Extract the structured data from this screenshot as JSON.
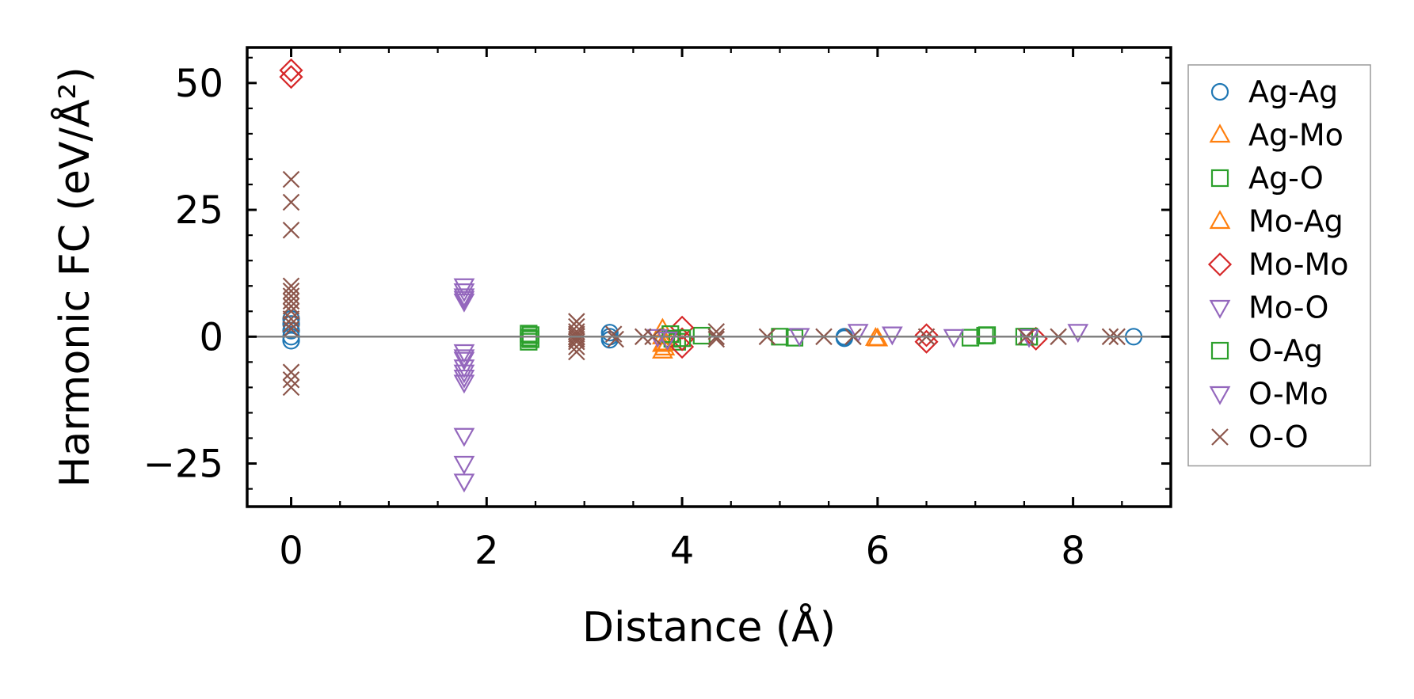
{
  "chart_data": {
    "type": "scatter",
    "xlabel": "Distance (Å)",
    "ylabel": "Harmonic FC (eV/Å²)",
    "xlim": [
      -0.45,
      9.0
    ],
    "ylim": [
      -33.5,
      57
    ],
    "x_ticks": [
      0,
      2,
      4,
      6,
      8
    ],
    "x_tick_labels": [
      "0",
      "2",
      "4",
      "6",
      "8"
    ],
    "y_ticks": [
      -25,
      0,
      25,
      50
    ],
    "y_tick_labels": [
      "−25",
      "0",
      "25",
      "50"
    ],
    "zero_line": true,
    "grid": false,
    "legend_position": "right",
    "series": [
      {
        "name": "Ag-Ag",
        "marker": "circle",
        "color": "#1f77b4",
        "x": [
          0,
          0,
          0,
          0,
          0,
          3.26,
          3.26,
          3.26,
          5.66,
          5.66,
          8.62
        ],
        "y": [
          3.5,
          2.5,
          1.2,
          0,
          -0.8,
          0.8,
          0,
          -0.6,
          0,
          -0.3,
          0
        ]
      },
      {
        "name": "Ag-Mo",
        "marker": "triangle-up",
        "color": "#ff7f0e",
        "x": [
          3.8,
          3.8,
          3.8,
          3.8,
          6.0
        ],
        "y": [
          1.5,
          0,
          -1.5,
          -2.8,
          -0.4
        ]
      },
      {
        "name": "Ag-O",
        "marker": "square",
        "color": "#2ca02c",
        "x": [
          2.43,
          2.43,
          2.43,
          3.9,
          3.95,
          4.2,
          5.0,
          5.15,
          6.95,
          7.1,
          7.5,
          7.55
        ],
        "y": [
          0.6,
          -0.2,
          -1.0,
          -0.4,
          -1.0,
          0.2,
          0,
          -0.2,
          -0.2,
          0.2,
          0,
          0
        ]
      },
      {
        "name": "Mo-Ag",
        "marker": "triangle-up",
        "color": "#ff7f0e",
        "x": [
          3.82,
          3.82,
          5.98
        ],
        "y": [
          -1.2,
          -2.2,
          -0.3
        ]
      },
      {
        "name": "Mo-Mo",
        "marker": "diamond",
        "color": "#d62728",
        "x": [
          0,
          0,
          4.0,
          4.0,
          4.0,
          6.5,
          6.5,
          7.62
        ],
        "y": [
          52.5,
          51.2,
          1.8,
          -0.5,
          -2.0,
          0.3,
          -1.0,
          -0.4
        ]
      },
      {
        "name": "Mo-O",
        "marker": "triangle-down",
        "color": "#9467bd",
        "x": [
          1.77,
          1.77,
          1.77,
          1.77,
          1.77,
          1.77,
          1.77,
          1.77,
          1.77,
          1.77,
          1.77,
          1.77,
          1.77
        ],
        "y": [
          10,
          9,
          8,
          7.5,
          7,
          -3,
          -4,
          -6,
          -7,
          -8,
          -9,
          -19.5,
          -25
        ]
      },
      {
        "name": "O-Ag",
        "marker": "square",
        "color": "#2ca02c",
        "x": [
          2.45,
          2.45,
          3.88,
          4.0,
          7.12,
          7.55
        ],
        "y": [
          0.3,
          -0.5,
          0.5,
          -0.3,
          0.3,
          0
        ]
      },
      {
        "name": "O-Mo",
        "marker": "triangle-down",
        "color": "#9467bd",
        "x": [
          1.77,
          1.77,
          3.75,
          3.85,
          5.2,
          5.8,
          6.15,
          6.78,
          7.55,
          8.05
        ],
        "y": [
          -28.5,
          -4.5,
          0,
          -0.5,
          0.2,
          1.0,
          0.5,
          0,
          0,
          1.0
        ]
      },
      {
        "name": "O-O",
        "marker": "x",
        "color": "#8c564b",
        "x": [
          0,
          0,
          0,
          0,
          0,
          0,
          0,
          0,
          0,
          0,
          0,
          0,
          0,
          0,
          0,
          2.92,
          2.92,
          2.92,
          2.92,
          2.92,
          2.92,
          2.92,
          2.92,
          2.92,
          3.3,
          3.32,
          3.6,
          3.7,
          4.35,
          4.35,
          4.35,
          4.87,
          5.45,
          5.75,
          6.5,
          7.52,
          7.85,
          8.38,
          8.45
        ],
        "y": [
          31,
          26.5,
          21,
          10,
          9,
          8,
          7,
          6,
          5,
          3.5,
          2.5,
          1.5,
          -7,
          -8.5,
          -10,
          3,
          2,
          1,
          0,
          -1,
          -2,
          -3,
          0.5,
          -0.5,
          0.5,
          -0.5,
          0,
          0,
          1,
          0,
          -0.5,
          0,
          0,
          0,
          0,
          0,
          0,
          0,
          0
        ]
      }
    ]
  }
}
